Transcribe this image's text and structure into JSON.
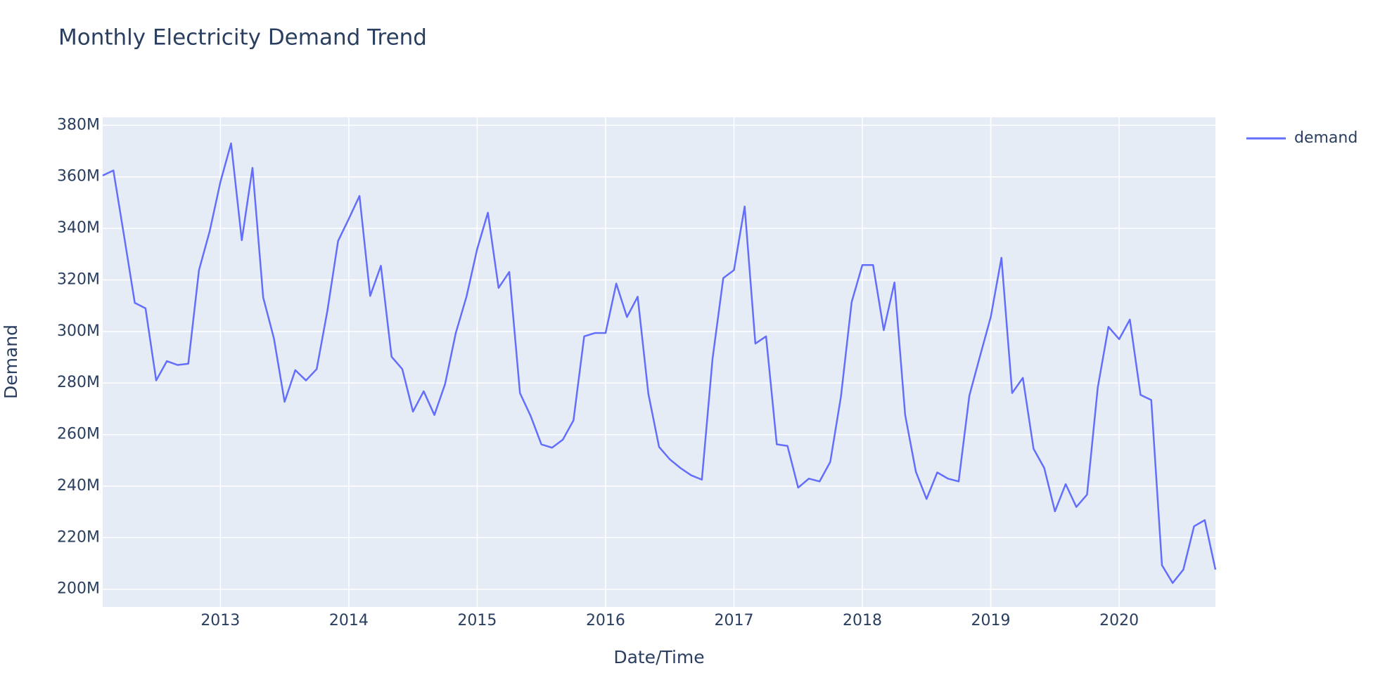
{
  "chart_data": {
    "type": "line",
    "title": "Monthly Electricity Demand Trend",
    "x_label": "Date/Time",
    "y_label": "Demand",
    "x": [
      "2012-02",
      "2012-03",
      "2012-04",
      "2012-05",
      "2012-06",
      "2012-07",
      "2012-08",
      "2012-09",
      "2012-10",
      "2012-11",
      "2012-12",
      "2013-01",
      "2013-02",
      "2013-03",
      "2013-04",
      "2013-05",
      "2013-06",
      "2013-07",
      "2013-08",
      "2013-09",
      "2013-10",
      "2013-11",
      "2013-12",
      "2014-01",
      "2014-02",
      "2014-03",
      "2014-04",
      "2014-05",
      "2014-06",
      "2014-07",
      "2014-08",
      "2014-09",
      "2014-10",
      "2014-11",
      "2014-12",
      "2015-01",
      "2015-02",
      "2015-03",
      "2015-04",
      "2015-05",
      "2015-06",
      "2015-07",
      "2015-08",
      "2015-09",
      "2015-10",
      "2015-11",
      "2015-12",
      "2016-01",
      "2016-02",
      "2016-03",
      "2016-04",
      "2016-05",
      "2016-06",
      "2016-07",
      "2016-08",
      "2016-09",
      "2016-10",
      "2016-11",
      "2016-12",
      "2017-01",
      "2017-02",
      "2017-03",
      "2017-04",
      "2017-05",
      "2017-06",
      "2017-07",
      "2017-08",
      "2017-09",
      "2017-10",
      "2017-11",
      "2017-12",
      "2018-01",
      "2018-02",
      "2018-03",
      "2018-04",
      "2018-05",
      "2018-06",
      "2018-07",
      "2018-08",
      "2018-09",
      "2018-10",
      "2018-11",
      "2018-12",
      "2019-01",
      "2019-02",
      "2019-03",
      "2019-04",
      "2019-05",
      "2019-06",
      "2019-07",
      "2019-08",
      "2019-09",
      "2019-10",
      "2019-11",
      "2019-12",
      "2020-01",
      "2020-02",
      "2020-03",
      "2020-04",
      "2020-05",
      "2020-06",
      "2020-07",
      "2020-08",
      "2020-09",
      "2020-10"
    ],
    "series": [
      {
        "name": "demand",
        "color": "#636efa",
        "values": [
          360500000,
          362500000,
          337000000,
          311100000,
          309000000,
          281000000,
          288500000,
          287000000,
          287500000,
          323800000,
          338900000,
          358000000,
          373000000,
          335400000,
          363500000,
          313200000,
          297400000,
          272700000,
          285000000,
          281000000,
          285400000,
          308000000,
          335100000,
          343700000,
          352600000,
          313800000,
          325500000,
          290200000,
          285400000,
          268900000,
          276800000,
          267600000,
          279600000,
          299400000,
          313500000,
          332000000,
          346100000,
          316900000,
          323100000,
          276100000,
          267200000,
          256200000,
          254900000,
          258000000,
          265500000,
          298100000,
          299400000,
          299400000,
          318600000,
          305600000,
          313500000,
          275800000,
          255200000,
          250400000,
          247000000,
          244200000,
          242500000,
          289500000,
          320700000,
          323800000,
          348500000,
          295300000,
          298100000,
          256200000,
          255600000,
          239400000,
          242900000,
          241800000,
          249400000,
          274800000,
          311400000,
          325800000,
          325800000,
          300500000,
          319000000,
          267600000,
          245600000,
          235000000,
          245300000,
          242900000,
          241800000,
          275100000,
          290500000,
          305600000,
          328600000,
          276100000,
          282000000,
          254500000,
          247000000,
          230200000,
          240800000,
          231900000,
          236700000,
          278200000,
          301800000,
          297000000,
          304600000,
          275400000,
          273400000,
          209300000,
          202400000,
          207600000,
          224400000,
          226800000,
          207600000
        ]
      }
    ],
    "xlim": [
      "2012-02",
      "2020-10"
    ],
    "xticks": [
      {
        "value": "2013-01",
        "label": "2013"
      },
      {
        "value": "2014-01",
        "label": "2014"
      },
      {
        "value": "2015-01",
        "label": "2015"
      },
      {
        "value": "2016-01",
        "label": "2016"
      },
      {
        "value": "2017-01",
        "label": "2017"
      },
      {
        "value": "2018-01",
        "label": "2018"
      },
      {
        "value": "2019-01",
        "label": "2019"
      },
      {
        "value": "2020-01",
        "label": "2020"
      }
    ],
    "ylim": [
      193100000,
      383100000
    ],
    "yticks": [
      {
        "value": 200000000,
        "label": "200M"
      },
      {
        "value": 220000000,
        "label": "220M"
      },
      {
        "value": 240000000,
        "label": "240M"
      },
      {
        "value": 260000000,
        "label": "260M"
      },
      {
        "value": 280000000,
        "label": "280M"
      },
      {
        "value": 300000000,
        "label": "300M"
      },
      {
        "value": 320000000,
        "label": "320M"
      },
      {
        "value": 340000000,
        "label": "340M"
      },
      {
        "value": 360000000,
        "label": "360M"
      },
      {
        "value": 380000000,
        "label": "380M"
      }
    ],
    "grid": true,
    "legend": "right",
    "background": "#e5ecf6"
  }
}
